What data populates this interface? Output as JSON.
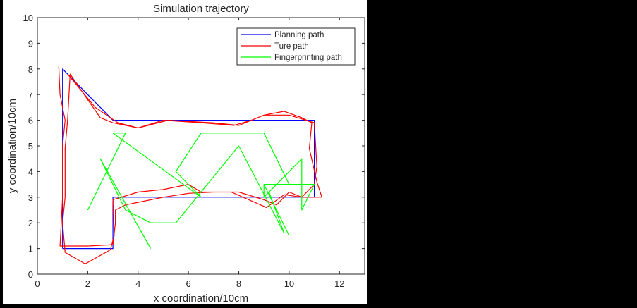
{
  "chart_data": {
    "type": "line",
    "title": "Simulation trajectory",
    "xlabel": "x coordination/10cm",
    "ylabel": "y coordination/10cm",
    "xlim": [
      0,
      13
    ],
    "ylim": [
      0,
      10
    ],
    "xticks": [
      0,
      2,
      4,
      6,
      8,
      10,
      12
    ],
    "yticks": [
      0,
      1,
      2,
      3,
      4,
      5,
      6,
      7,
      8,
      9,
      10
    ],
    "grid": false,
    "legend_position": "upper right",
    "series": [
      {
        "name": "Planning path",
        "color": "#0000ff",
        "points": [
          [
            1,
            1
          ],
          [
            1,
            8
          ],
          [
            3,
            6
          ],
          [
            11,
            6
          ],
          [
            11,
            3
          ],
          [
            3,
            3
          ],
          [
            3,
            1
          ],
          [
            1,
            1
          ]
        ]
      },
      {
        "name": "Ture path",
        "color": "#ff0000",
        "points": [
          [
            0.85,
            8.1
          ],
          [
            0.9,
            7
          ],
          [
            1.1,
            6
          ],
          [
            1.0,
            5
          ],
          [
            1.0,
            4
          ],
          [
            1.0,
            3
          ],
          [
            0.95,
            2
          ],
          [
            0.9,
            1.1
          ],
          [
            2,
            1.1
          ],
          [
            3,
            1.15
          ],
          [
            3.1,
            2
          ],
          [
            3.1,
            2.5
          ],
          [
            3.5,
            2.7
          ],
          [
            4,
            2.8
          ],
          [
            5,
            3
          ],
          [
            6,
            3.15
          ],
          [
            7,
            3.2
          ],
          [
            8,
            3.2
          ],
          [
            9,
            2.9
          ],
          [
            9.5,
            2.7
          ],
          [
            10,
            3.2
          ],
          [
            10.5,
            3
          ],
          [
            11,
            3
          ],
          [
            11.3,
            3
          ],
          [
            11.1,
            3.6
          ],
          [
            10.8,
            4.9
          ],
          [
            10.9,
            5.9
          ],
          [
            10.5,
            6.1
          ],
          [
            9.8,
            6.35
          ],
          [
            9,
            6.2
          ],
          [
            8.5,
            6
          ],
          [
            7.8,
            5.8
          ],
          [
            6.5,
            5.9
          ],
          [
            5,
            6
          ],
          [
            4,
            5.7
          ],
          [
            3,
            5.9
          ],
          [
            2.5,
            6.1
          ],
          [
            2,
            6.8
          ],
          [
            1.3,
            7.8
          ],
          [
            1.2,
            6
          ],
          [
            1.1,
            4.9
          ],
          [
            1.1,
            3
          ],
          [
            1.0,
            2
          ],
          [
            1.1,
            0.85
          ],
          [
            1.9,
            0.4
          ],
          [
            2.9,
            0.95
          ],
          [
            3.05,
            1.5
          ],
          [
            3.0,
            2.9
          ],
          [
            4,
            3.2
          ],
          [
            5,
            3.3
          ],
          [
            6,
            3.5
          ],
          [
            6.5,
            3.2
          ],
          [
            7.7,
            3.2
          ],
          [
            9.1,
            2.6
          ],
          [
            9.8,
            3.1
          ],
          [
            10.5,
            3
          ],
          [
            11,
            3.5
          ],
          [
            11.1,
            4.2
          ],
          [
            11,
            5.9
          ],
          [
            10,
            6.2
          ],
          [
            9,
            6.2
          ],
          [
            8,
            5.8
          ],
          [
            7,
            5.9
          ],
          [
            5.2,
            6
          ],
          [
            4,
            5.7
          ],
          [
            3.2,
            5.9
          ],
          [
            2.3,
            6.5
          ],
          [
            1.2,
            7.8
          ]
        ]
      },
      {
        "name": "Fingerprinting path",
        "color": "#00ff00",
        "points": [
          [
            2,
            2.5
          ],
          [
            3.5,
            5.5
          ],
          [
            3,
            5.5
          ],
          [
            6.5,
            3
          ],
          [
            5.5,
            4
          ],
          [
            6.5,
            5.5
          ],
          [
            9,
            5.5
          ],
          [
            10,
            3.5
          ],
          [
            11,
            3.5
          ],
          [
            10.5,
            2.5
          ],
          [
            10.5,
            4.5
          ],
          [
            9,
            3
          ],
          [
            9,
            3.5
          ],
          [
            11,
            3.5
          ],
          [
            10.5,
            2.5
          ],
          [
            10.5,
            4.5
          ],
          [
            9.2,
            3.2
          ],
          [
            9.8,
            1.6
          ],
          [
            8,
            5
          ],
          [
            5.5,
            2
          ],
          [
            4.5,
            2
          ],
          [
            3.5,
            2.5
          ],
          [
            2.5,
            4.5
          ],
          [
            4.5,
            1
          ]
        ],
        "extra_segments": [
          [
            [
              9,
              3.5
            ],
            [
              10,
              1.5
            ]
          ]
        ]
      }
    ]
  },
  "legend": {
    "items": [
      {
        "label": "Planning path",
        "color": "#0000ff"
      },
      {
        "label": "Ture path",
        "color": "#ff0000"
      },
      {
        "label": "Fingerprinting path",
        "color": "#00ff00"
      }
    ]
  }
}
